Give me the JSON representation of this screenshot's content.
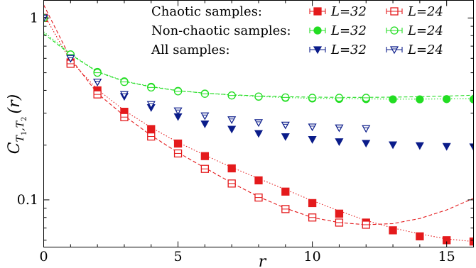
{
  "chart_data": {
    "type": "scatter",
    "title": "",
    "xlabel": "r",
    "ylabel_parts": {
      "C": "C",
      "T": "T",
      "sub1": "1",
      "sub2": "2",
      "arg": "(r)"
    },
    "xscale": "linear",
    "yscale": "log",
    "xlim": [
      0,
      16
    ],
    "ylim": [
      0.055,
      1.25
    ],
    "xticks": [
      0,
      5,
      10,
      15
    ],
    "xtick_labels": [
      "0",
      "5",
      "10",
      "15"
    ],
    "yticks": [
      0.1,
      1
    ],
    "ytick_labels": [
      "0.1",
      "1"
    ],
    "grid": false,
    "legend": {
      "placement": "top-right",
      "rows": [
        {
          "label": "Chaotic samples:",
          "items": [
            "L=32",
            "L=24"
          ],
          "color": "#e41a1c"
        },
        {
          "label": "Non-chaotic samples:",
          "items": [
            "L=32",
            "L=24"
          ],
          "color": "#22dd22"
        },
        {
          "label": "All samples:",
          "items": [
            "L=32",
            "L=24"
          ],
          "color": "#0b1c8a"
        }
      ]
    },
    "series": [
      {
        "name": "L=32",
        "group": "Chaotic samples",
        "marker": "square-filled",
        "color": "#e41a1c",
        "x": [
          0,
          1,
          2,
          3,
          4,
          5,
          6,
          7,
          8,
          9,
          10,
          11,
          12,
          13,
          14,
          15,
          16
        ],
        "y": [
          1.0,
          0.57,
          0.4,
          0.305,
          0.245,
          0.204,
          0.174,
          0.149,
          0.128,
          0.111,
          0.096,
          0.084,
          0.075,
          0.068,
          0.063,
          0.06,
          0.059
        ],
        "fit": {
          "style": "dotted",
          "x": [
            0,
            1,
            2,
            3,
            4,
            5,
            6,
            7,
            8,
            9,
            10,
            11,
            12,
            13,
            14,
            15,
            16
          ],
          "y": [
            1.05,
            0.58,
            0.405,
            0.31,
            0.25,
            0.207,
            0.176,
            0.151,
            0.131,
            0.114,
            0.099,
            0.087,
            0.077,
            0.07,
            0.065,
            0.061,
            0.059
          ]
        }
      },
      {
        "name": "L=24",
        "group": "Chaotic samples",
        "marker": "square-open",
        "color": "#e41a1c",
        "x": [
          0,
          1,
          2,
          3,
          4,
          5,
          6,
          7,
          8,
          9,
          10,
          11,
          12
        ],
        "y": [
          1.0,
          0.56,
          0.38,
          0.285,
          0.223,
          0.18,
          0.148,
          0.123,
          0.103,
          0.089,
          0.08,
          0.075,
          0.073
        ],
        "fit": {
          "style": "dashed",
          "x": [
            0,
            1,
            2,
            3,
            4,
            5,
            6,
            7,
            8,
            9,
            10,
            11,
            12,
            13,
            14,
            15,
            16
          ],
          "y": [
            1.18,
            0.6,
            0.385,
            0.29,
            0.226,
            0.182,
            0.15,
            0.124,
            0.104,
            0.09,
            0.08,
            0.075,
            0.073,
            0.074,
            0.079,
            0.088,
            0.102
          ]
        }
      },
      {
        "name": "L=32",
        "group": "Non-chaotic samples",
        "marker": "circle-filled",
        "color": "#22dd22",
        "x": [
          0,
          1,
          2,
          3,
          4,
          5,
          6,
          7,
          8,
          9,
          10,
          11,
          12,
          13,
          14,
          15,
          16
        ],
        "y": [
          1.0,
          0.63,
          0.505,
          0.448,
          0.418,
          0.397,
          0.384,
          0.375,
          0.369,
          0.364,
          0.361,
          0.359,
          0.358,
          0.357,
          0.357,
          0.358,
          0.357
        ],
        "fit": {
          "style": "dotted",
          "x": [
            0,
            1,
            2,
            3,
            4,
            5,
            6,
            7,
            8,
            9,
            10,
            11,
            12,
            13,
            14,
            15,
            16
          ],
          "y": [
            0.84,
            0.635,
            0.508,
            0.45,
            0.42,
            0.399,
            0.386,
            0.377,
            0.37,
            0.365,
            0.362,
            0.36,
            0.359,
            0.358,
            0.358,
            0.359,
            0.36
          ]
        }
      },
      {
        "name": "L=24",
        "group": "Non-chaotic samples",
        "marker": "circle-open",
        "color": "#22dd22",
        "x": [
          0,
          1,
          2,
          3,
          4,
          5,
          6,
          7,
          8,
          9,
          10,
          11,
          12
        ],
        "y": [
          1.0,
          0.63,
          0.5,
          0.445,
          0.415,
          0.395,
          0.383,
          0.375,
          0.37,
          0.366,
          0.364,
          0.364,
          0.364
        ],
        "fit": {
          "style": "dashed",
          "x": [
            0,
            1,
            2,
            3,
            4,
            5,
            6,
            7,
            8,
            9,
            10,
            11,
            12,
            13,
            14,
            15,
            16
          ],
          "y": [
            0.82,
            0.63,
            0.505,
            0.448,
            0.418,
            0.398,
            0.386,
            0.378,
            0.373,
            0.369,
            0.367,
            0.366,
            0.366,
            0.367,
            0.369,
            0.372,
            0.376
          ]
        }
      },
      {
        "name": "L=32",
        "group": "All samples",
        "marker": "triangle-down-filled",
        "color": "#0b1c8a",
        "x": [
          0,
          1,
          2,
          3,
          4,
          5,
          6,
          7,
          8,
          9,
          10,
          11,
          12,
          13,
          14,
          15,
          16
        ],
        "y": [
          1.0,
          0.6,
          0.445,
          0.371,
          0.322,
          0.287,
          0.262,
          0.245,
          0.232,
          0.223,
          0.215,
          0.209,
          0.205,
          0.201,
          0.199,
          0.197,
          0.196
        ]
      },
      {
        "name": "L=24",
        "group": "All samples",
        "marker": "triangle-down-open",
        "color": "#0b1c8a",
        "x": [
          0,
          1,
          2,
          3,
          4,
          5,
          6,
          7,
          8,
          9,
          10,
          11,
          12
        ],
        "y": [
          1.0,
          0.6,
          0.445,
          0.38,
          0.335,
          0.309,
          0.29,
          0.276,
          0.266,
          0.258,
          0.252,
          0.249,
          0.247
        ]
      }
    ]
  }
}
